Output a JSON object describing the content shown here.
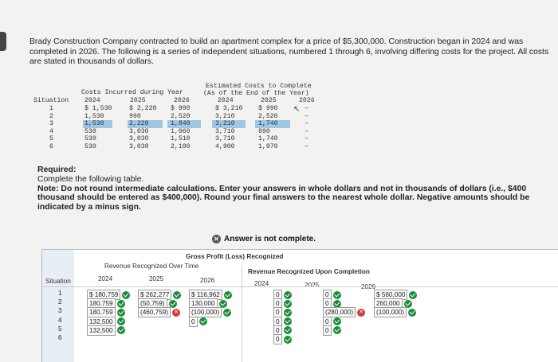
{
  "problem": {
    "text": "Brady Construction Company contracted to build an apartment complex for a price of $5,300,000. Construction began in 2024 and was completed in 2026. The following is a series of independent situations, numbered 1 through 6, involving differing costs for the project. All costs are stated in thousands of dollars."
  },
  "cost_table": {
    "group1": "Costs Incurred during Year",
    "group2": "Estimated Costs to Complete",
    "group2_sub": "(As of the End of the Year)",
    "col_situation": "Situation",
    "years": [
      "2024",
      "2025",
      "2026",
      "2024",
      "2025",
      "2026"
    ],
    "rows": [
      [
        "1",
        "$ 1,530",
        "$ 2,220",
        "$ 990",
        "$ 3,210",
        "$ 990",
        "–"
      ],
      [
        "2",
        "1,530",
        "990",
        "2,520",
        "3,210",
        "2,520",
        "–"
      ],
      [
        "3",
        "1,530",
        "2,220",
        "1,840",
        "3,210",
        "1,740",
        "–"
      ],
      [
        "4",
        "530",
        "3,030",
        "1,060",
        "3,710",
        "890",
        "–"
      ],
      [
        "5",
        "530",
        "3,030",
        "1,510",
        "3,710",
        "1,740",
        "–"
      ],
      [
        "6",
        "530",
        "3,030",
        "2,100",
        "4,900",
        "1,970",
        "–"
      ]
    ]
  },
  "required": {
    "heading": "Required:",
    "line1": "Complete the following table.",
    "note": "Note: Do not round intermediate calculations. Enter your answers in whole dollars and not in thousands of dollars (i.e., $400 thousand should be entered as $400,000). Round your final answers to the nearest whole dollar. Negative amounts should be indicated by a minus sign."
  },
  "status": "Answer is not complete.",
  "answer_table": {
    "title": "Gross Profit (Loss) Recognized",
    "group1": "Revenue Recognized Over Time",
    "group2": "Revenue Recognized Upon Completion",
    "col_situation": "Situation",
    "years": [
      "2024",
      "2025",
      "2026",
      "2024",
      "2025",
      "2026"
    ],
    "situations": [
      "1",
      "2",
      "3",
      "4",
      "5",
      "6"
    ],
    "over_time": [
      [
        "$ 180,759",
        "$ 262,277",
        "$ 116,962"
      ],
      [
        "180,759",
        "(50,759)",
        "130,000"
      ],
      [
        "180,759",
        "(460,759)",
        "(100,000)"
      ],
      [
        "132,500",
        "",
        "0"
      ],
      [
        "132,500",
        "",
        ""
      ],
      [
        "",
        "",
        ""
      ]
    ],
    "over_time_marks": [
      [
        "ok",
        "ok",
        "ok"
      ],
      [
        "ok",
        "ok",
        "ok"
      ],
      [
        "ok",
        "bad",
        "ok"
      ],
      [
        "ok",
        "",
        "ok"
      ],
      [
        "ok",
        "",
        ""
      ],
      [
        "",
        "",
        ""
      ]
    ],
    "completion": [
      [
        "0",
        "0",
        "$ 560,000"
      ],
      [
        "0",
        "0",
        "260,000"
      ],
      [
        "0",
        "(280,000)",
        "(100,000)"
      ],
      [
        "0",
        "0",
        ""
      ],
      [
        "0",
        "0",
        ""
      ],
      [
        "0",
        "",
        ""
      ]
    ],
    "completion_marks": [
      [
        "ok",
        "ok",
        "ok"
      ],
      [
        "ok",
        "ok",
        "ok"
      ],
      [
        "ok",
        "bad",
        "ok"
      ],
      [
        "ok",
        "ok",
        ""
      ],
      [
        "ok",
        "ok",
        ""
      ],
      [
        "ok",
        "",
        ""
      ]
    ]
  },
  "colors": {
    "ok": "#1b8e3a",
    "bad": "#d23b3b",
    "highlight": "#9ec7e6"
  }
}
